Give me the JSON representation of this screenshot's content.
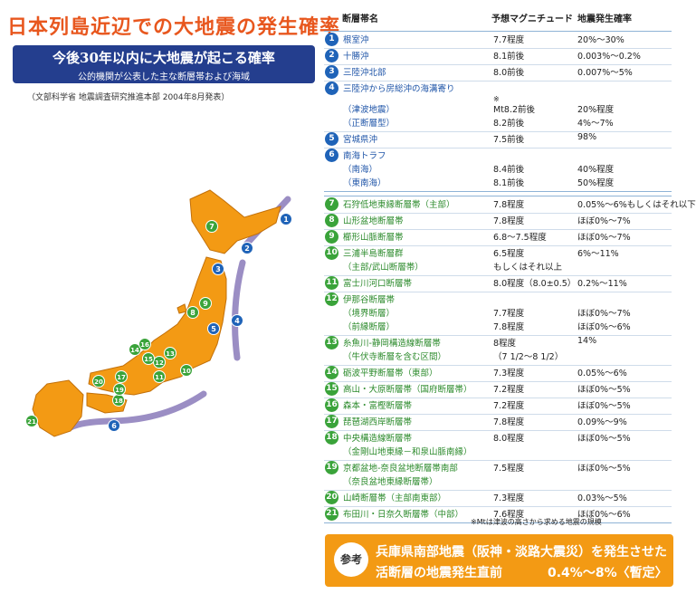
{
  "title": "日本列島近辺での大地震の発生確率",
  "subtitle": "今後30年以内に大地震が起こる確率",
  "subtitle_note": "公的機関が公表した主な断層帯および海域",
  "source": "（文部科学省 地震調査研究推進本部 2004年8月発表）",
  "table": {
    "headers": {
      "name": "断層帯名",
      "magnitude": "予想マグニチュード",
      "probability": "地震発生確率"
    },
    "note_mark": "※",
    "sea_rows": [
      {
        "num": "1",
        "lines": [
          {
            "name": "根室沖",
            "mag": "7.7程度",
            "prob": "20%〜30%"
          }
        ]
      },
      {
        "num": "2",
        "lines": [
          {
            "name": "十勝沖",
            "mag": "8.1前後",
            "prob": "0.003%〜0.2%"
          }
        ]
      },
      {
        "num": "3",
        "lines": [
          {
            "name": "三陸沖北部",
            "mag": "8.0前後",
            "prob": "0.007%〜5%"
          }
        ]
      },
      {
        "num": "4",
        "lines": [
          {
            "name": "三陸沖から房総沖の海溝寄り",
            "mag": "",
            "prob": ""
          },
          {
            "name": "（津波地震）",
            "mag": "Mt8.2前後",
            "prob": "20%程度"
          },
          {
            "name": "（正断層型）",
            "mag": "8.2前後",
            "prob": "4%〜7%"
          }
        ]
      },
      {
        "num": "5",
        "lines": [
          {
            "name": "宮城県沖",
            "mag": "7.5前後",
            "prob": "98%"
          }
        ]
      },
      {
        "num": "6",
        "lines": [
          {
            "name": "南海トラフ",
            "mag": "",
            "prob": ""
          },
          {
            "name": "（南海）",
            "mag": "8.4前後",
            "prob": "40%程度"
          },
          {
            "name": "（東南海）",
            "mag": "8.1前後",
            "prob": "50%程度"
          }
        ]
      }
    ],
    "fault_rows": [
      {
        "num": "7",
        "lines": [
          {
            "name": "石狩低地東縁断層帯（主部）",
            "mag": "7.8程度",
            "prob": "0.05%〜6%もしくはそれ以下"
          }
        ]
      },
      {
        "num": "8",
        "lines": [
          {
            "name": "山形盆地断層帯",
            "mag": "7.8程度",
            "prob": "ほぼ0%〜7%"
          }
        ]
      },
      {
        "num": "9",
        "lines": [
          {
            "name": "櫛形山脈断層帯",
            "mag": "6.8〜7.5程度",
            "prob": "ほぼ0%〜7%"
          }
        ]
      },
      {
        "num": "10",
        "lines": [
          {
            "name": "三浦半島断層群",
            "mag": "6.5程度",
            "prob": "6%〜11%"
          },
          {
            "name": "（主部/武山断層帯）",
            "mag": "もしくはそれ以上",
            "prob": ""
          }
        ]
      },
      {
        "num": "11",
        "lines": [
          {
            "name": "富士川河口断層帯",
            "mag": "8.0程度（8.0±0.5）",
            "prob": "0.2%〜11%"
          }
        ]
      },
      {
        "num": "12",
        "lines": [
          {
            "name": "伊那谷断層帯",
            "mag": "",
            "prob": ""
          },
          {
            "name": "（境界断層）",
            "mag": "7.7程度",
            "prob": "ほぼ0%〜7%"
          },
          {
            "name": "（前縁断層）",
            "mag": "7.8程度",
            "prob": "ほぼ0%〜6%"
          }
        ]
      },
      {
        "num": "13",
        "lines": [
          {
            "name": "糸魚川-静岡構造線断層帯",
            "mag": "8程度",
            "prob": "14%"
          },
          {
            "name": "（牛伏寺断層を含む区間）",
            "mag": "（7 1/2〜8 1/2）",
            "prob": ""
          }
        ]
      },
      {
        "num": "14",
        "lines": [
          {
            "name": "砺波平野断層帯（東部）",
            "mag": "7.3程度",
            "prob": "0.05%〜6%"
          }
        ]
      },
      {
        "num": "15",
        "lines": [
          {
            "name": "高山・大原断層帯（国府断層帯）",
            "mag": "7.2程度",
            "prob": "ほぼ0%〜5%"
          }
        ]
      },
      {
        "num": "16",
        "lines": [
          {
            "name": "森本・富樫断層帯",
            "mag": "7.2程度",
            "prob": "ほぼ0%〜5%"
          }
        ]
      },
      {
        "num": "17",
        "lines": [
          {
            "name": "琵琶湖西岸断層帯",
            "mag": "7.8程度",
            "prob": "0.09%〜9%"
          }
        ]
      },
      {
        "num": "18",
        "lines": [
          {
            "name": "中央構造線断層帯",
            "mag": "8.0程度",
            "prob": "ほぼ0%〜5%"
          },
          {
            "name": "（金剛山地東縁－和泉山脈南縁）",
            "mag": "",
            "prob": ""
          }
        ]
      },
      {
        "num": "19",
        "lines": [
          {
            "name": "京都盆地-奈良盆地断層帯南部",
            "mag": "7.5程度",
            "prob": "ほぼ0%〜5%"
          },
          {
            "name": "（奈良盆地東縁断層帯）",
            "mag": "",
            "prob": ""
          }
        ]
      },
      {
        "num": "20",
        "lines": [
          {
            "name": "山崎断層帯（主部南東部）",
            "mag": "7.3程度",
            "prob": "0.03%〜5%"
          }
        ]
      },
      {
        "num": "21",
        "lines": [
          {
            "name": "布田川・日奈久断層帯（中部）",
            "mag": "7.6程度",
            "prob": "ほぼ0%〜6%"
          }
        ]
      }
    ]
  },
  "footnote": "※Mtは津波の高さから求める地震の規模",
  "reference": {
    "badge": "参考",
    "line1": "兵庫県南部地震（阪神・淡路大震災）を発生させた",
    "line2": "活断層の地震発生直前",
    "value": "0.4%〜8%〈暫定〉"
  },
  "colors": {
    "title": "#e8571e",
    "sub_box": "#243e8e",
    "sea_marker": "#1f63b8",
    "fault_marker": "#3aa33a",
    "land": "#f39a14",
    "trench": "#9b8ec4",
    "reference_box": "#f39a14"
  },
  "map_markers": {
    "sea": [
      "1",
      "2",
      "3",
      "4",
      "5",
      "6"
    ],
    "fault": [
      "7",
      "8",
      "9",
      "10",
      "11",
      "12",
      "13",
      "14",
      "15",
      "16",
      "17",
      "18",
      "19",
      "20",
      "21"
    ]
  }
}
